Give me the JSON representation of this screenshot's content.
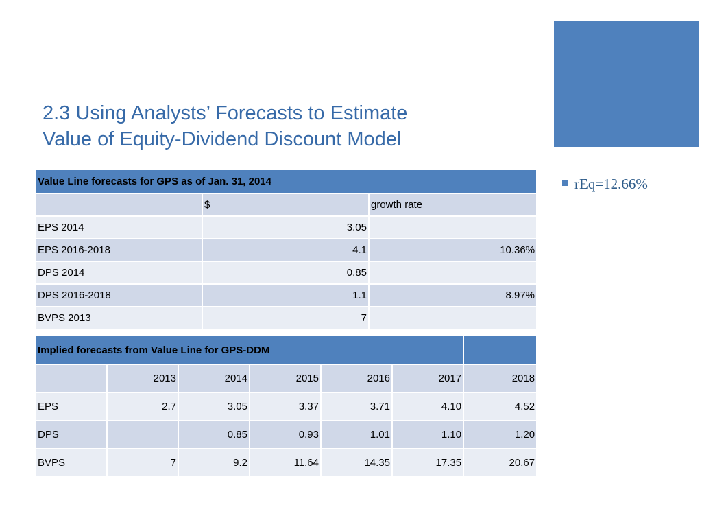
{
  "slide": {
    "title_line1": "2.3 Using Analysts’ Forecasts to Estimate",
    "title_line2": "Value of Equity-Dividend Discount Model",
    "bullet": "rEq=12.66%",
    "accent_color": "#4f81bd"
  },
  "table1": {
    "header": "Value Line forecasts for GPS as of Jan. 31, 2014",
    "columns": [
      "",
      "$",
      "growth rate"
    ],
    "rows": [
      {
        "label": "EPS 2014",
        "value": "3.05",
        "growth": ""
      },
      {
        "label": "EPS 2016-2018",
        "value": "4.1",
        "growth": "10.36%"
      },
      {
        "label": "DPS 2014",
        "value": "0.85",
        "growth": ""
      },
      {
        "label": "DPS 2016-2018",
        "value": "1.1",
        "growth": "8.97%"
      },
      {
        "label": "BVPS 2013",
        "value": "7",
        "growth": ""
      }
    ]
  },
  "table2": {
    "header": "Implied forecasts from Value Line for GPS-DDM",
    "years": [
      "2013",
      "2014",
      "2015",
      "2016",
      "2017",
      "2018"
    ],
    "rows": [
      {
        "label": "EPS",
        "values": [
          "2.7",
          "3.05",
          "3.37",
          "3.71",
          "4.10",
          "4.52"
        ]
      },
      {
        "label": "DPS",
        "values": [
          "",
          "0.85",
          "0.93",
          "1.01",
          "1.10",
          "1.20"
        ]
      },
      {
        "label": "BVPS",
        "values": [
          "7",
          "9.2",
          "11.64",
          "14.35",
          "17.35",
          "20.67"
        ]
      }
    ]
  }
}
